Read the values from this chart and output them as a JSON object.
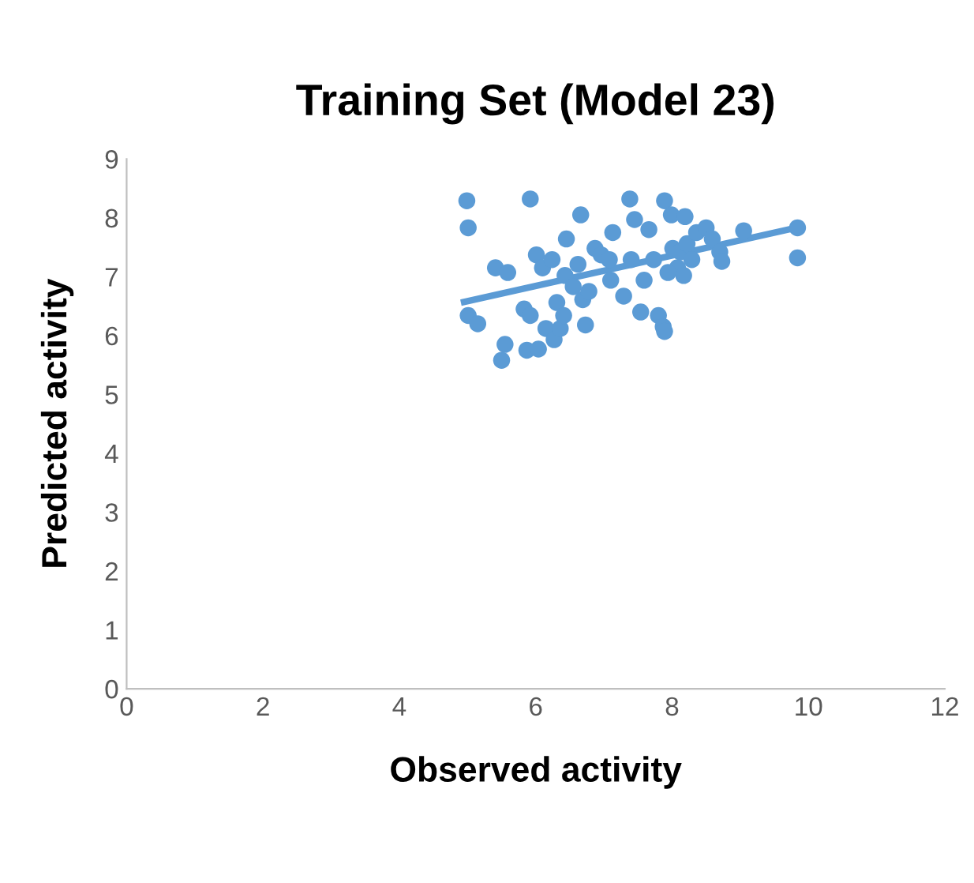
{
  "chart_data": {
    "type": "scatter",
    "title": "Training Set (Model 23)",
    "xlabel": "Observed activity",
    "ylabel": "Predicted activity",
    "xlim": [
      0,
      12
    ],
    "xticks": [
      0,
      2,
      4,
      6,
      8,
      10,
      12
    ],
    "ylim": [
      0,
      9
    ],
    "yticks": [
      0,
      1,
      2,
      3,
      4,
      5,
      6,
      7,
      8,
      9
    ],
    "grid": false,
    "legend": false,
    "series": [
      {
        "color": "#5b9bd5",
        "marker": "circle",
        "x": [
          4.99,
          5.01,
          5.92,
          5.01,
          5.15,
          5.41,
          5.59,
          5.55,
          5.5,
          5.83,
          5.92,
          5.87,
          6.04,
          6.01,
          6.1,
          6.24,
          6.15,
          6.27,
          6.36,
          6.31,
          6.41,
          6.45,
          6.43,
          6.55,
          6.62,
          6.66,
          6.69,
          6.73,
          6.78,
          6.87,
          6.96,
          7.08,
          7.1,
          7.13,
          7.29,
          7.38,
          7.4,
          7.45,
          7.54,
          7.59,
          7.66,
          7.73,
          7.8,
          7.87,
          7.89,
          7.89,
          7.99,
          8.01,
          8.08,
          8.12,
          8.19,
          8.22,
          8.29,
          8.36,
          8.5,
          8.59,
          8.7,
          8.73,
          9.05,
          9.84,
          9.84,
          7.94,
          8.17
        ],
        "values": [
          8.29,
          7.83,
          8.32,
          6.34,
          6.2,
          7.15,
          7.07,
          5.85,
          5.58,
          6.45,
          6.34,
          5.75,
          5.77,
          7.37,
          7.15,
          7.29,
          6.12,
          5.93,
          6.12,
          6.56,
          6.34,
          7.64,
          7.02,
          6.83,
          7.21,
          8.05,
          6.61,
          6.18,
          6.75,
          7.48,
          7.37,
          7.29,
          6.94,
          7.75,
          6.67,
          8.32,
          7.29,
          7.97,
          6.4,
          6.94,
          7.8,
          7.29,
          6.34,
          6.15,
          6.07,
          8.29,
          8.05,
          7.48,
          7.15,
          7.42,
          8.02,
          7.56,
          7.29,
          7.75,
          7.83,
          7.64,
          7.42,
          7.26,
          7.78,
          7.83,
          7.32,
          7.07,
          7.02
        ]
      },
      {
        "type": "line",
        "color": "#5b9bd5",
        "marker": "none",
        "line_style": "solid",
        "x": [
          4.95,
          9.82
        ],
        "values": [
          6.57,
          7.83
        ]
      }
    ]
  }
}
